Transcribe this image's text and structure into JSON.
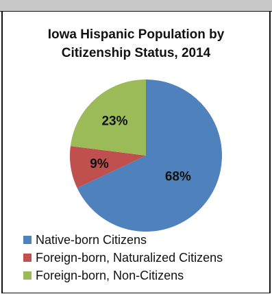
{
  "chart_data": {
    "type": "pie",
    "title": "Iowa Hispanic Population by Citizenship Status, 2014",
    "title_lines": [
      "Iowa Hispanic Population by",
      "Citizenship Status, 2014"
    ],
    "categories": [
      "Native-born Citizens",
      "Foreign-born, Naturalized Citizens",
      "Foreign-born, Non-Citizens"
    ],
    "values": [
      68,
      9,
      23
    ],
    "data_labels": [
      "68%",
      "9%",
      "23%"
    ],
    "colors": [
      "#4f81bd",
      "#c0504d",
      "#9bbb59"
    ],
    "legend_position": "bottom-left"
  }
}
